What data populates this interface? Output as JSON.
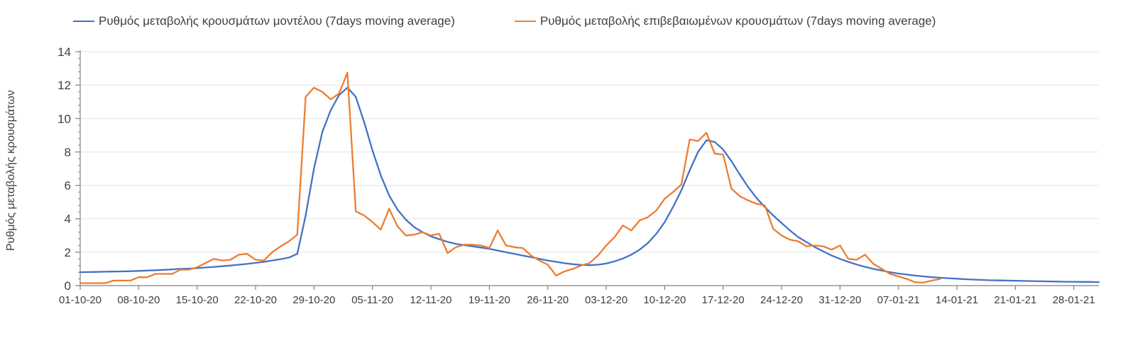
{
  "legend": [
    {
      "label": "Ρυθμός μεταβολής κρουσμάτων μοντέλου (7days moving average)",
      "color": "#4472C4"
    },
    {
      "label": "Ρυθμός μεταβολής επιβεβαιωμένων κρουσμάτων (7days moving average)",
      "color": "#ED7D31"
    }
  ],
  "colors": {
    "series_model": "#4472C4",
    "series_confirmed": "#ED7D31",
    "grid": "#E3E3E3",
    "axis": "#808080",
    "tick_label": "#404040"
  },
  "chart_data": {
    "type": "line",
    "title": "",
    "xlabel": "",
    "ylabel": "Ρυθμός μεταβολής κρουσμάτων",
    "ylim": [
      0,
      14
    ],
    "ytick_step": 2,
    "ytick_labels": [
      "0",
      "2",
      "4",
      "6",
      "8",
      "10",
      "12",
      "14"
    ],
    "y_minor_step": 0.4,
    "grid": "horizontal",
    "legend_position": "top",
    "x_unit": "day",
    "x_total_days": 122,
    "x_tick_interval_days": 7,
    "x_tick_labels": [
      "01-10-20",
      "08-10-20",
      "15-10-20",
      "22-10-20",
      "29-10-20",
      "05-11-20",
      "12-11-20",
      "19-11-20",
      "26-11-20",
      "03-12-20",
      "10-12-20",
      "17-12-20",
      "24-12-20",
      "31-12-20",
      "07-01-21",
      "14-01-21",
      "21-01-21",
      "28-01-21"
    ],
    "series": [
      {
        "name": "Ρυθμός μεταβολής κρουσμάτων μοντέλου (7days moving average)",
        "color": "#4472C4",
        "start_day": 0,
        "values": [
          0.8,
          0.81,
          0.82,
          0.83,
          0.84,
          0.85,
          0.86,
          0.88,
          0.9,
          0.92,
          0.94,
          0.97,
          1.0,
          1.02,
          1.05,
          1.08,
          1.12,
          1.16,
          1.2,
          1.25,
          1.3,
          1.36,
          1.42,
          1.5,
          1.58,
          1.68,
          1.9,
          4.2,
          7.0,
          9.2,
          10.5,
          11.4,
          11.85,
          11.3,
          9.8,
          8.1,
          6.6,
          5.4,
          4.55,
          3.95,
          3.5,
          3.2,
          2.95,
          2.78,
          2.62,
          2.5,
          2.42,
          2.35,
          2.28,
          2.2,
          2.1,
          2.0,
          1.9,
          1.8,
          1.7,
          1.6,
          1.5,
          1.42,
          1.34,
          1.28,
          1.24,
          1.22,
          1.25,
          1.32,
          1.45,
          1.62,
          1.85,
          2.15,
          2.55,
          3.1,
          3.8,
          4.7,
          5.7,
          6.9,
          8.0,
          8.7,
          8.6,
          8.15,
          7.45,
          6.65,
          5.9,
          5.25,
          4.7,
          4.2,
          3.75,
          3.3,
          2.9,
          2.6,
          2.3,
          2.05,
          1.8,
          1.6,
          1.42,
          1.26,
          1.12,
          1.0,
          0.9,
          0.8,
          0.72,
          0.66,
          0.6,
          0.55,
          0.5,
          0.47,
          0.44,
          0.41,
          0.38,
          0.36,
          0.34,
          0.32,
          0.31,
          0.3,
          0.29,
          0.28,
          0.27,
          0.26,
          0.25,
          0.24,
          0.23,
          0.23,
          0.22,
          0.22,
          0.21
        ]
      },
      {
        "name": "Ρυθμός μεταβολής επιβεβαιωμένων κρουσμάτων (7days moving average)",
        "color": "#ED7D31",
        "start_day": 0,
        "values": [
          0.15,
          0.15,
          0.15,
          0.15,
          0.3,
          0.3,
          0.3,
          0.5,
          0.5,
          0.7,
          0.7,
          0.7,
          0.95,
          0.95,
          1.1,
          1.35,
          1.6,
          1.5,
          1.55,
          1.85,
          1.9,
          1.55,
          1.5,
          2.0,
          2.35,
          2.65,
          3.05,
          11.3,
          11.85,
          11.6,
          11.15,
          11.5,
          12.75,
          4.45,
          4.2,
          3.8,
          3.35,
          4.6,
          3.55,
          3.0,
          3.05,
          3.2,
          3.0,
          3.1,
          1.95,
          2.3,
          2.45,
          2.45,
          2.4,
          2.25,
          3.3,
          2.4,
          2.3,
          2.25,
          1.8,
          1.5,
          1.25,
          0.6,
          0.85,
          1.0,
          1.2,
          1.35,
          1.8,
          2.4,
          2.9,
          3.6,
          3.3,
          3.9,
          4.1,
          4.5,
          5.2,
          5.6,
          6.05,
          8.75,
          8.65,
          9.15,
          7.9,
          7.85,
          5.8,
          5.35,
          5.1,
          4.9,
          4.8,
          3.4,
          3.0,
          2.75,
          2.65,
          2.35,
          2.4,
          2.35,
          2.15,
          2.4,
          1.6,
          1.55,
          1.85,
          1.3,
          1.0,
          0.7,
          0.55,
          0.4,
          0.2,
          0.18,
          0.3,
          0.4
        ]
      }
    ]
  }
}
